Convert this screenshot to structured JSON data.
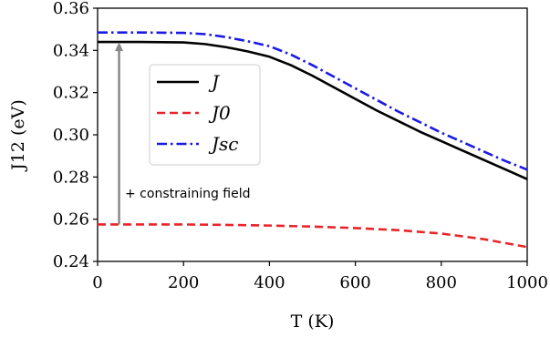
{
  "chart_data": {
    "type": "line",
    "xlabel": "T (K)",
    "ylabel": "J12 (eV)",
    "xlim": [
      0,
      1000
    ],
    "ylim": [
      0.24,
      0.36
    ],
    "xticks": [
      "0",
      "200",
      "400",
      "600",
      "800",
      "1000"
    ],
    "yticks": [
      "0.24",
      "0.26",
      "0.28",
      "0.30",
      "0.32",
      "0.34",
      "0.36"
    ],
    "grid": false,
    "legend_position": "upper-left-center",
    "series": [
      {
        "name": "J",
        "color": "#000000",
        "style": "solid",
        "x": [
          0,
          100,
          200,
          250,
          300,
          350,
          400,
          450,
          500,
          550,
          600,
          650,
          700,
          750,
          800,
          850,
          900,
          950,
          1000
        ],
        "y": [
          0.344,
          0.344,
          0.3438,
          0.343,
          0.3415,
          0.3395,
          0.337,
          0.333,
          0.328,
          0.3225,
          0.317,
          0.3115,
          0.3065,
          0.3015,
          0.297,
          0.2925,
          0.288,
          0.2835,
          0.279
        ]
      },
      {
        "name": "J0",
        "color": "#e8262a",
        "style": "dashed",
        "x": [
          0,
          100,
          200,
          300,
          400,
          500,
          600,
          700,
          800,
          900,
          1000
        ],
        "y": [
          0.2575,
          0.2575,
          0.2575,
          0.2573,
          0.257,
          0.2565,
          0.2558,
          0.2548,
          0.2532,
          0.2505,
          0.2468
        ]
      },
      {
        "name": "Jsc",
        "color": "#1a1ae6",
        "style": "dashdot",
        "x": [
          0,
          100,
          200,
          250,
          300,
          350,
          400,
          450,
          500,
          550,
          600,
          650,
          700,
          750,
          800,
          850,
          900,
          950,
          1000
        ],
        "y": [
          0.3485,
          0.3485,
          0.3483,
          0.3477,
          0.3463,
          0.3443,
          0.342,
          0.338,
          0.333,
          0.3275,
          0.322,
          0.3165,
          0.311,
          0.306,
          0.301,
          0.2965,
          0.292,
          0.2875,
          0.2835
        ]
      }
    ],
    "annotation": {
      "text": "+ constraining field",
      "arrow_x": 50,
      "arrow_from_y": 0.2575,
      "arrow_to_y": 0.344,
      "arrow_color": "#888888"
    }
  }
}
